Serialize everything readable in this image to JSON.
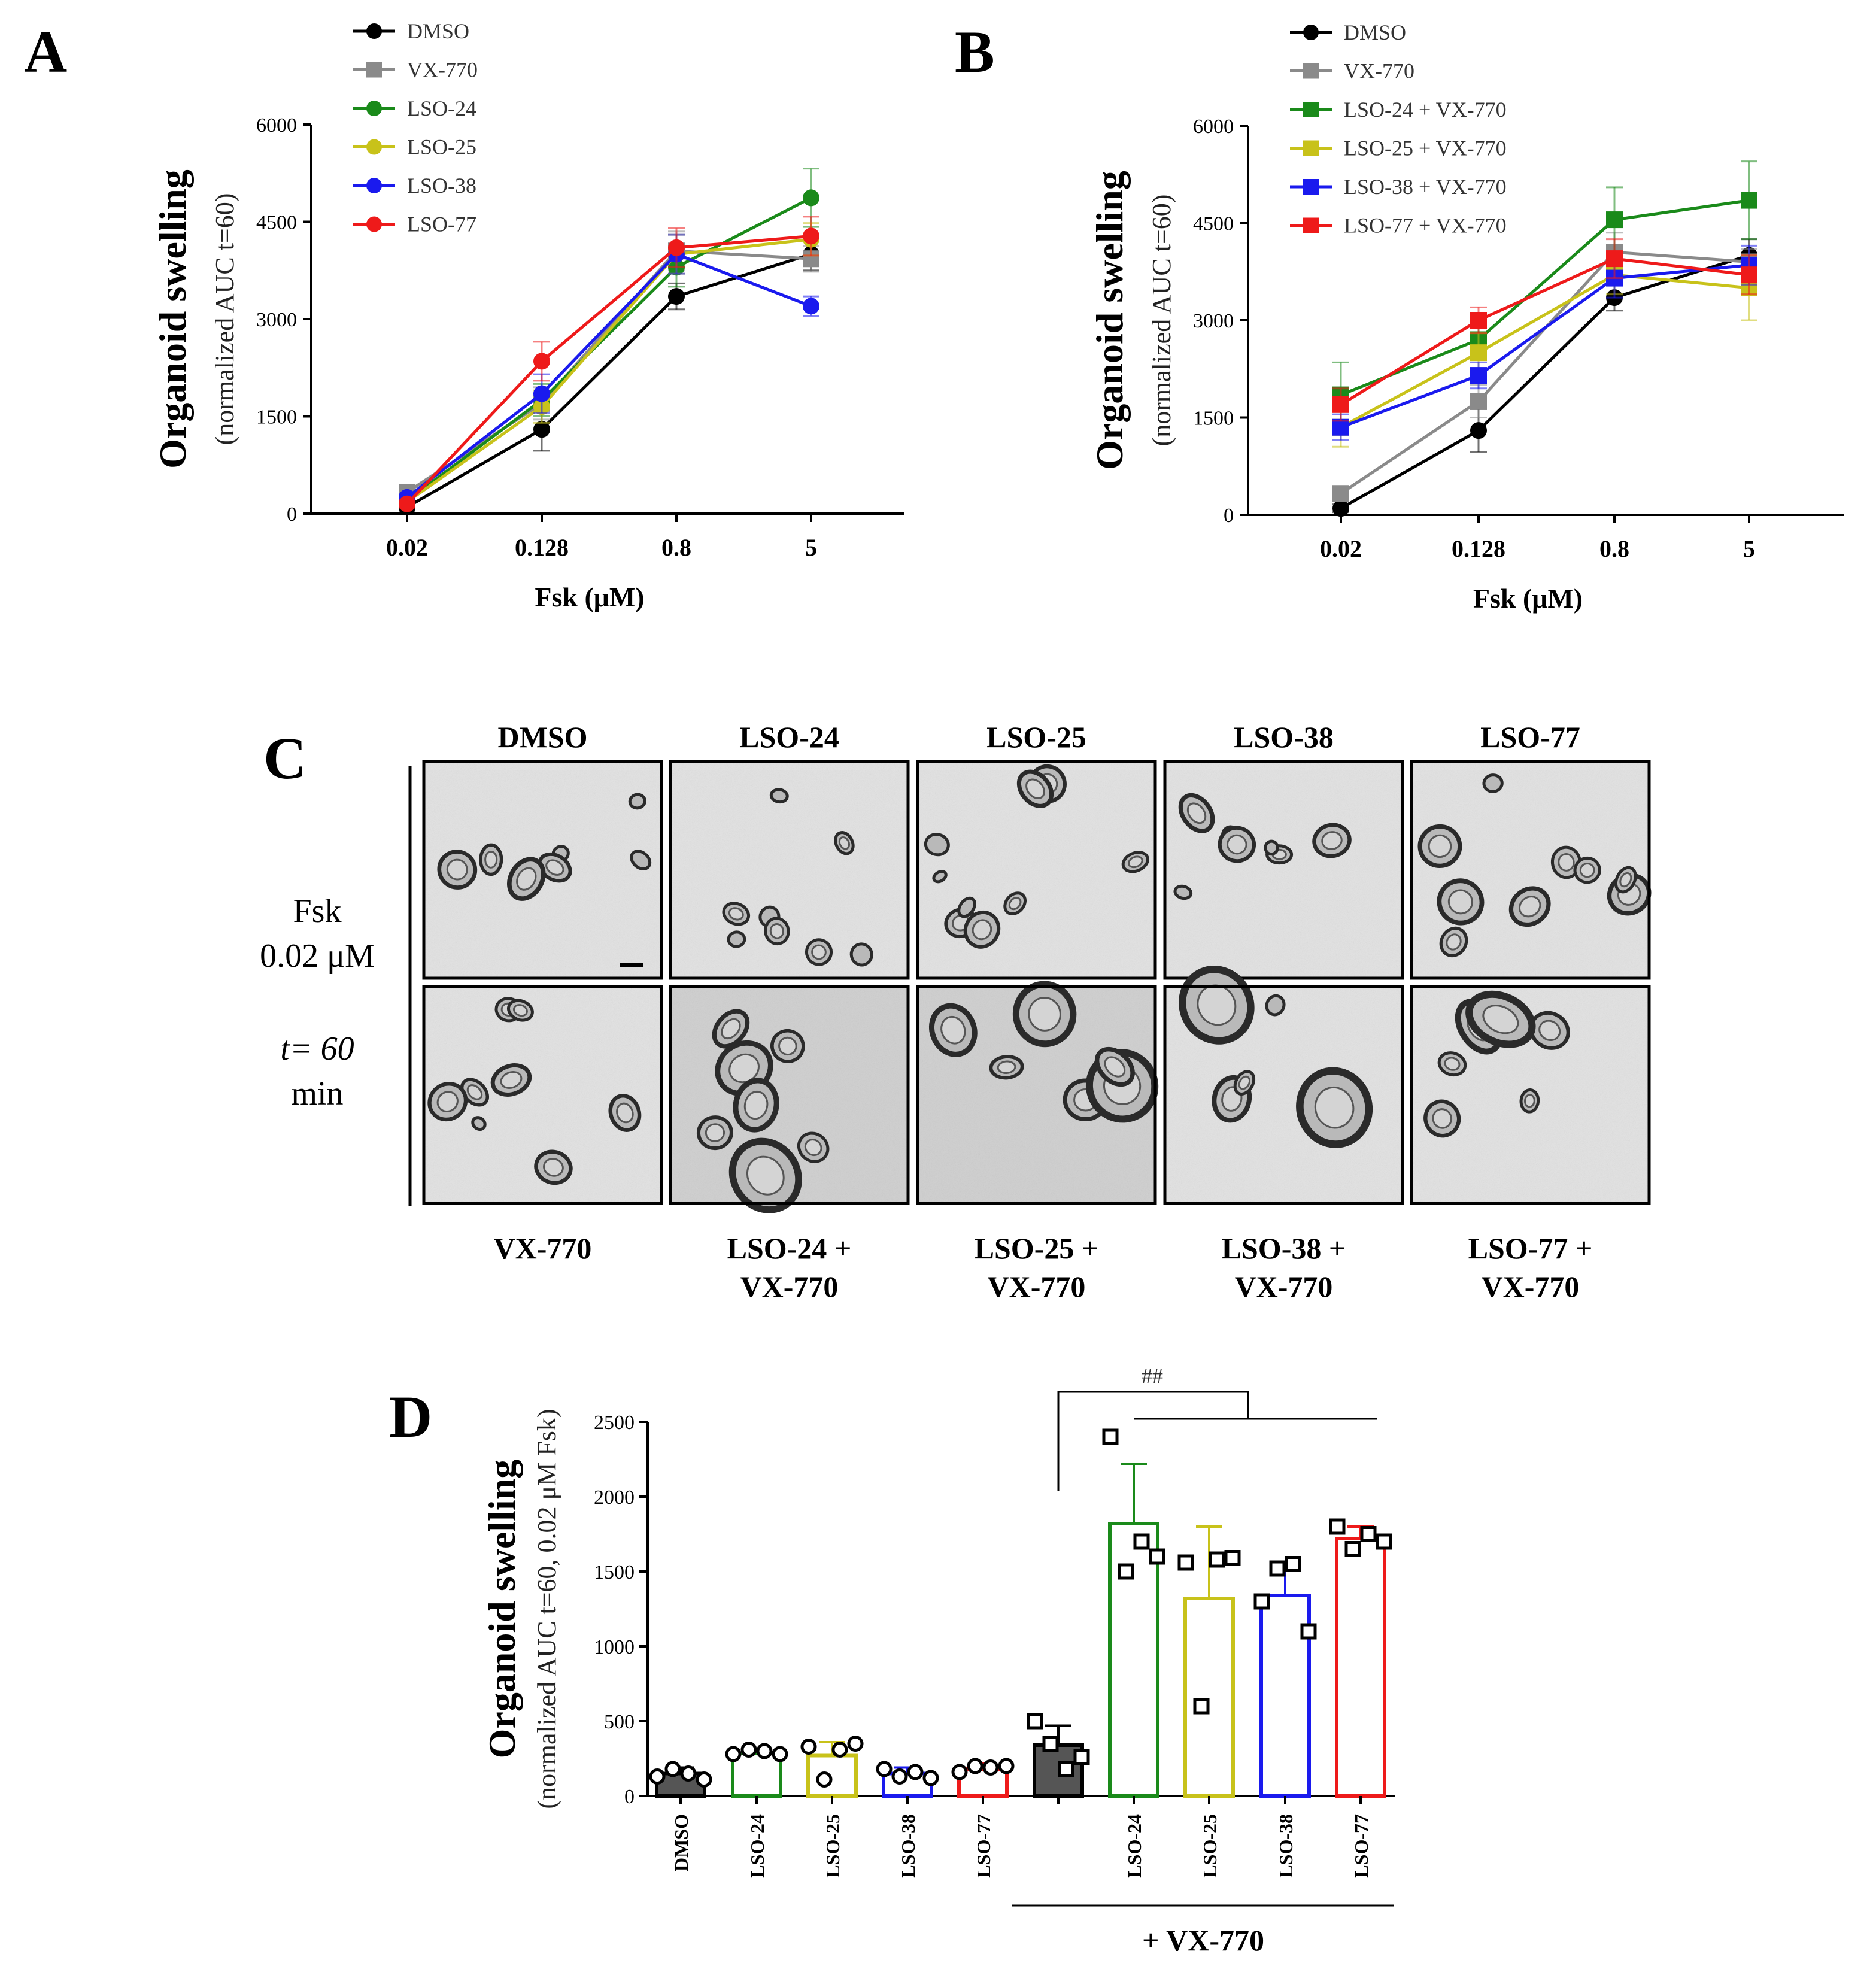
{
  "chart_data": [
    {
      "type": "line",
      "panel": "A",
      "xlabel": "Fsk (μM)",
      "ylabel": "Organoid swelling",
      "ylabel_sub": "(normalized AUC t=60)",
      "categories": [
        "0.02",
        "0.128",
        "0.8",
        "5"
      ],
      "ylim": [
        0,
        6000
      ],
      "yticks": [
        "0",
        "1500",
        "3000",
        "4500",
        "6000"
      ],
      "series": [
        {
          "name": "DMSO",
          "color": "#000000",
          "marker": "circle",
          "values": [
            100,
            1300,
            3350,
            4000
          ],
          "err": [
            60,
            330,
            200,
            250
          ]
        },
        {
          "name": "VX-770",
          "color": "#8a8a8a",
          "marker": "square",
          "values": [
            330,
            1700,
            4050,
            3930
          ],
          "err": [
            80,
            250,
            300,
            200
          ]
        },
        {
          "name": "LSO-24",
          "color": "#1a8a1a",
          "marker": "circle",
          "values": [
            200,
            1750,
            3800,
            4870
          ],
          "err": [
            60,
            250,
            300,
            450
          ]
        },
        {
          "name": "LSO-25",
          "color": "#c8c21a",
          "marker": "circle",
          "values": [
            180,
            1650,
            4000,
            4230
          ],
          "err": [
            60,
            250,
            300,
            250
          ]
        },
        {
          "name": "LSO-38",
          "color": "#1a1aee",
          "marker": "circle",
          "values": [
            250,
            1850,
            4000,
            3200
          ],
          "err": [
            60,
            300,
            300,
            150
          ]
        },
        {
          "name": "LSO-77",
          "color": "#ee1a1a",
          "marker": "circle",
          "values": [
            150,
            2350,
            4100,
            4280
          ],
          "err": [
            60,
            300,
            300,
            300
          ]
        }
      ]
    },
    {
      "type": "line",
      "panel": "B",
      "xlabel": "Fsk (μM)",
      "ylabel": "Organoid swelling",
      "ylabel_sub": "(normalized AUC t=60)",
      "categories": [
        "0.02",
        "0.128",
        "0.8",
        "5"
      ],
      "ylim": [
        0,
        6000
      ],
      "yticks": [
        "0",
        "1500",
        "3000",
        "4500",
        "6000"
      ],
      "series": [
        {
          "name": "DMSO",
          "color": "#000000",
          "marker": "circle",
          "values": [
            100,
            1300,
            3350,
            4000
          ],
          "err": [
            60,
            330,
            200,
            250
          ]
        },
        {
          "name": "VX-770",
          "color": "#8a8a8a",
          "marker": "square",
          "values": [
            330,
            1750,
            4050,
            3900
          ],
          "err": [
            80,
            250,
            300,
            200
          ]
        },
        {
          "name": "LSO-24 + VX-770",
          "color": "#1a8a1a",
          "marker": "square",
          "values": [
            1850,
            2700,
            4550,
            4850
          ],
          "err": [
            500,
            300,
            500,
            600
          ]
        },
        {
          "name": "LSO-25 + VX-770",
          "color": "#c8c21a",
          "marker": "square",
          "values": [
            1350,
            2500,
            3700,
            3500
          ],
          "err": [
            300,
            300,
            300,
            500
          ]
        },
        {
          "name": "LSO-38 + VX-770",
          "color": "#1a1aee",
          "marker": "square",
          "values": [
            1350,
            2150,
            3650,
            3850
          ],
          "err": [
            200,
            200,
            300,
            300
          ]
        },
        {
          "name": "LSO-77 + VX-770",
          "color": "#ee1a1a",
          "marker": "square",
          "values": [
            1700,
            3000,
            3950,
            3700
          ],
          "err": [
            250,
            200,
            300,
            300
          ]
        }
      ]
    },
    {
      "type": "bar",
      "panel": "D",
      "ylabel": "Organoid swelling",
      "ylabel_sub": "(normalized AUC t=60, 0.02 μM Fsk)",
      "ylim": [
        0,
        2500
      ],
      "yticks": [
        "0",
        "500",
        "1000",
        "1500",
        "2000",
        "2500"
      ],
      "categories": [
        "DMSO",
        "LSO-24",
        "LSO-25",
        "LSO-38",
        "LSO-77",
        "",
        "LSO-24",
        "LSO-25",
        "LSO-38",
        "LSO-77"
      ],
      "values": [
        150,
        285,
        270,
        150,
        180,
        340,
        1820,
        1320,
        1340,
        1720
      ],
      "err": [
        40,
        30,
        90,
        40,
        40,
        130,
        400,
        480,
        200,
        80
      ],
      "colors": [
        "#000000",
        "#1a8a1a",
        "#c8c21a",
        "#1a1aee",
        "#ee1a1a",
        "#000000",
        "#1a8a1a",
        "#c8c21a",
        "#1a1aee",
        "#ee1a1a"
      ],
      "filled": [
        true,
        false,
        false,
        false,
        false,
        true,
        false,
        false,
        false,
        false
      ],
      "points": [
        [
          130,
          180,
          150,
          110
        ],
        [
          280,
          310,
          300,
          280
        ],
        [
          330,
          110,
          310,
          350
        ],
        [
          180,
          130,
          160,
          120
        ],
        [
          160,
          200,
          190,
          200
        ],
        [
          500,
          350,
          180,
          260
        ],
        [
          2400,
          1500,
          1700,
          1600
        ],
        [
          1560,
          600,
          1580,
          1590
        ],
        [
          1300,
          1520,
          1550,
          1100
        ],
        [
          1800,
          1650,
          1750,
          1700
        ]
      ],
      "point_marker": [
        "circle",
        "circle",
        "circle",
        "circle",
        "circle",
        "square",
        "square",
        "square",
        "square",
        "square"
      ],
      "group_label": "+ VX-770",
      "significance": "##"
    }
  ],
  "panel_c": {
    "letter": "C",
    "top_labels": [
      "DMSO",
      "LSO-24",
      "LSO-25",
      "LSO-38",
      "LSO-77"
    ],
    "bottom_labels": [
      "VX-770",
      "LSO-24 +",
      "LSO-25 +",
      "LSO-38 +",
      "LSO-77 +"
    ],
    "bottom_labels_2": [
      "",
      "VX-770",
      "VX-770",
      "VX-770",
      "VX-770"
    ],
    "side_fsk": "Fsk",
    "side_conc": "0.02 μM",
    "side_t": "t= 60",
    "side_min": "min"
  }
}
